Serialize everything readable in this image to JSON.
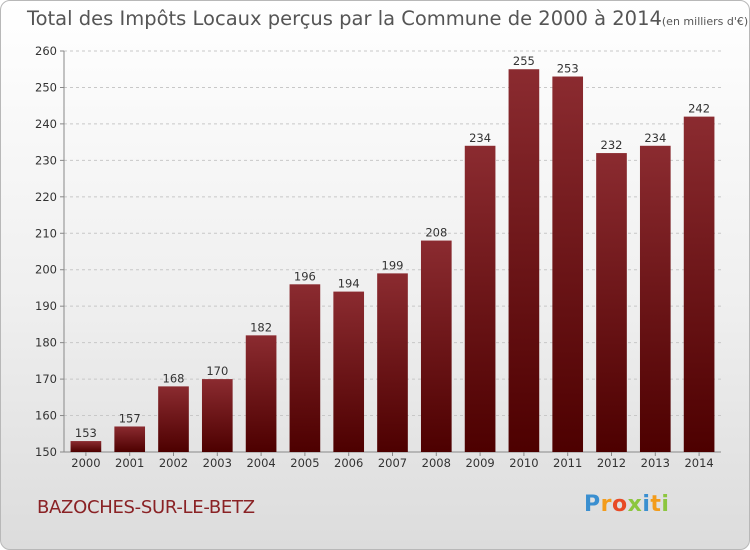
{
  "chart_data": {
    "type": "bar",
    "title": "Total des Impôts Locaux perçus par la Commune de 2000 à 2014",
    "subtitle": "(en milliers d'€)",
    "categories": [
      "2000",
      "2001",
      "2002",
      "2003",
      "2004",
      "2005",
      "2006",
      "2007",
      "2008",
      "2009",
      "2010",
      "2011",
      "2012",
      "2013",
      "2014"
    ],
    "values": [
      153,
      157,
      168,
      170,
      182,
      196,
      194,
      199,
      208,
      234,
      255,
      253,
      232,
      234,
      242
    ],
    "ylim": [
      150,
      260
    ],
    "yticks": [
      150,
      160,
      170,
      180,
      190,
      200,
      210,
      220,
      230,
      240,
      250,
      260
    ],
    "grid": true,
    "xlabel": "",
    "ylabel": "",
    "bar_color_top": "#8b2b30",
    "bar_color_bottom": "#4d0000"
  },
  "commune": "BAZOCHES-SUR-LE-BETZ",
  "logo": {
    "letters": [
      "P",
      "r",
      "o",
      "x",
      "i",
      "t",
      "i"
    ],
    "colors": [
      "#3a8fd0",
      "#f39c1b",
      "#e84a26",
      "#8cc63f",
      "#3a8fd0",
      "#f39c1b",
      "#8cc63f"
    ]
  }
}
